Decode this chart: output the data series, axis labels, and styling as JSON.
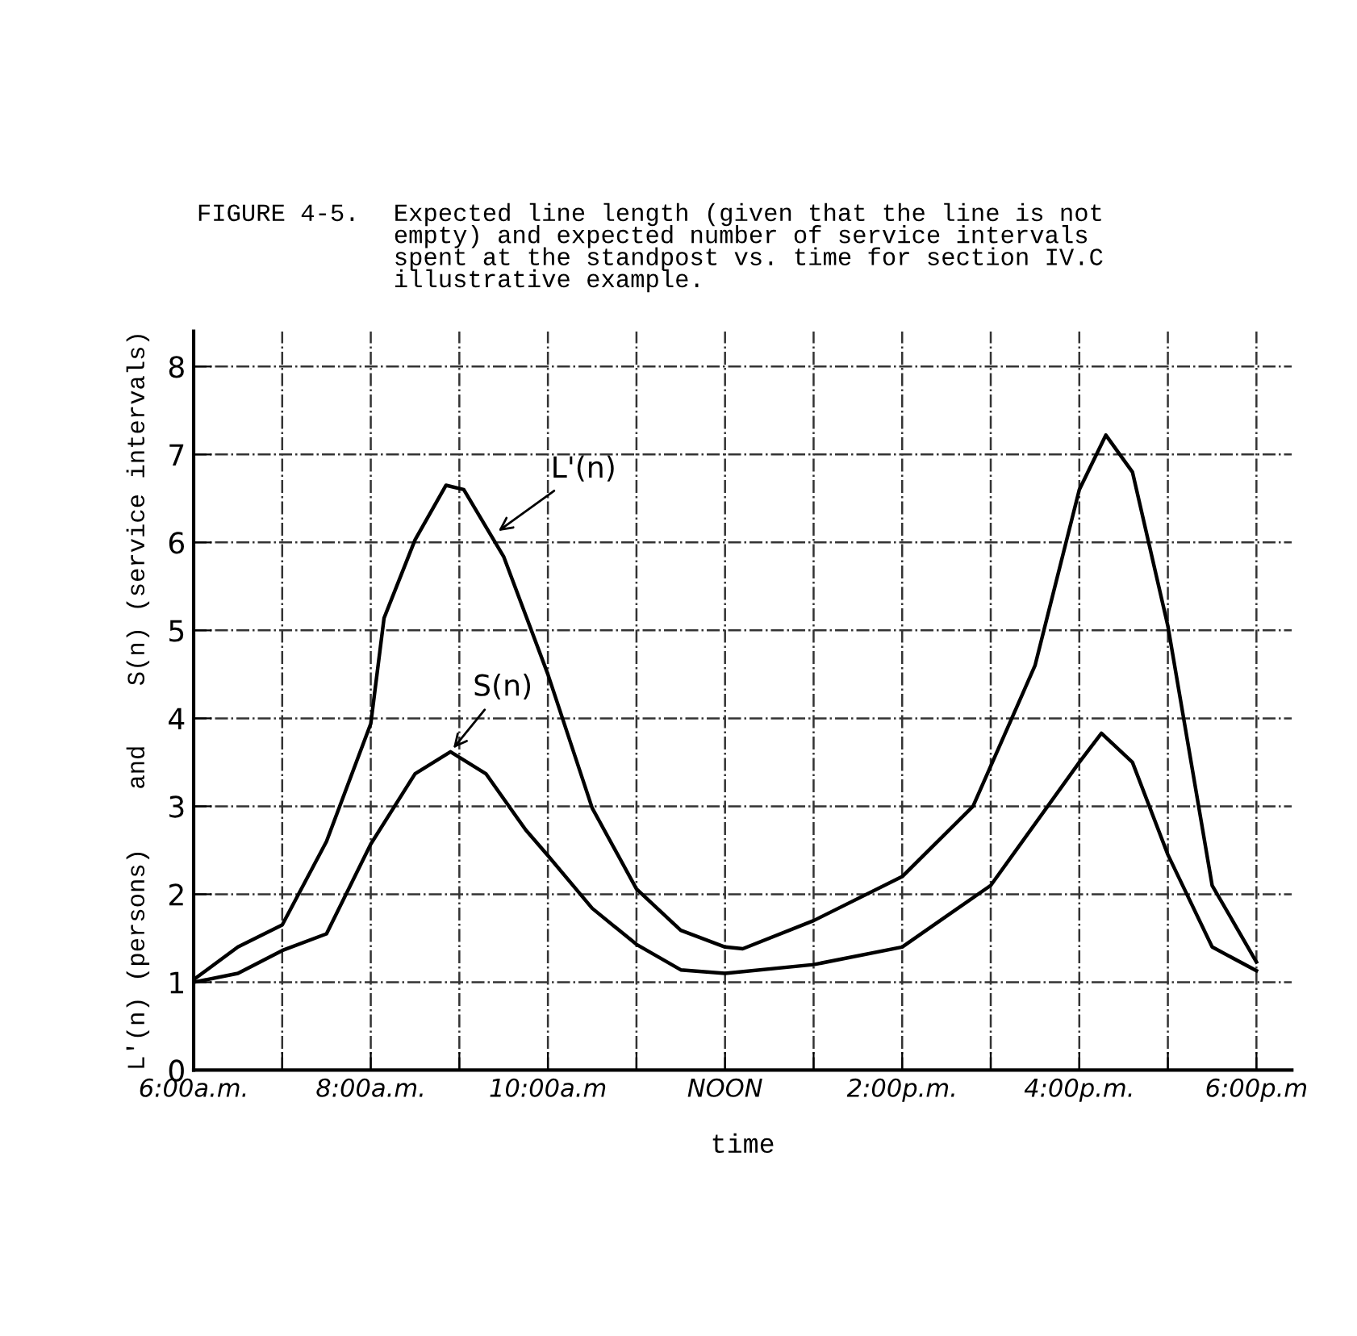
{
  "chart_data": {
    "type": "line",
    "title": "FIGURE 4-5.",
    "subtitle": "Expected line length (given that the line is not\nempty) and expected number of service intervals\nspent at the standpost vs. time for section IV.C\nillustrative example.",
    "xlabel": "time",
    "ylabel": "L'(n) (persons)    and    S(n) (service intervals)",
    "xlim": [
      6,
      18.4
    ],
    "ylim": [
      0,
      8.4
    ],
    "xticks": [
      {
        "value": 6,
        "label": "6:00a.m."
      },
      {
        "value": 7,
        "label": null
      },
      {
        "value": 8,
        "label": "8:00a.m."
      },
      {
        "value": 9,
        "label": null
      },
      {
        "value": 10,
        "label": "10:00a.m"
      },
      {
        "value": 11,
        "label": null
      },
      {
        "value": 12,
        "label": "NOON"
      },
      {
        "value": 13,
        "label": null
      },
      {
        "value": 14,
        "label": "2:00p.m."
      },
      {
        "value": 15,
        "label": null
      },
      {
        "value": 16,
        "label": "4:00p.m."
      },
      {
        "value": 17,
        "label": null
      },
      {
        "value": 18,
        "label": "6:00p.m"
      }
    ],
    "yticks": [
      0,
      1,
      2,
      3,
      4,
      5,
      6,
      7,
      8
    ],
    "grid": true,
    "marker": "none",
    "line_style": "solid",
    "series": [
      {
        "color": "#000000",
        "x": [
          6,
          6.5,
          7,
          7.5,
          8,
          8.15,
          8.5,
          8.85,
          9.05,
          9.5,
          10,
          10.5,
          11,
          11.5,
          12,
          12.2,
          13,
          14,
          14.8,
          15.5,
          16,
          16.3,
          16.6,
          17,
          17.5,
          18
        ],
        "values": [
          1.03,
          1.4,
          1.65,
          2.6,
          3.94,
          5.14,
          6.03,
          6.65,
          6.6,
          5.84,
          4.5,
          2.98,
          2.06,
          1.59,
          1.4,
          1.38,
          1.7,
          2.2,
          3.0,
          4.6,
          6.6,
          7.22,
          6.8,
          5.05,
          2.1,
          1.23
        ]
      },
      {
        "color": "#000000",
        "x": [
          6,
          6.5,
          7,
          7.5,
          8,
          8.5,
          8.9,
          9.3,
          9.75,
          10,
          10.5,
          11,
          11.5,
          12,
          13,
          14,
          14.5,
          15,
          16,
          16.25,
          16.6,
          17,
          17.5,
          18
        ],
        "values": [
          1.0,
          1.1,
          1.36,
          1.55,
          2.57,
          3.37,
          3.62,
          3.37,
          2.73,
          2.44,
          1.84,
          1.43,
          1.14,
          1.1,
          1.2,
          1.4,
          1.75,
          2.1,
          3.5,
          3.83,
          3.5,
          2.45,
          1.4,
          1.13
        ]
      }
    ],
    "annotations": [
      {
        "text": "L'(n)",
        "x": 9.4,
        "y": 6.1
      },
      {
        "text": "S(n)",
        "x": 8.9,
        "y": 3.62
      }
    ]
  }
}
